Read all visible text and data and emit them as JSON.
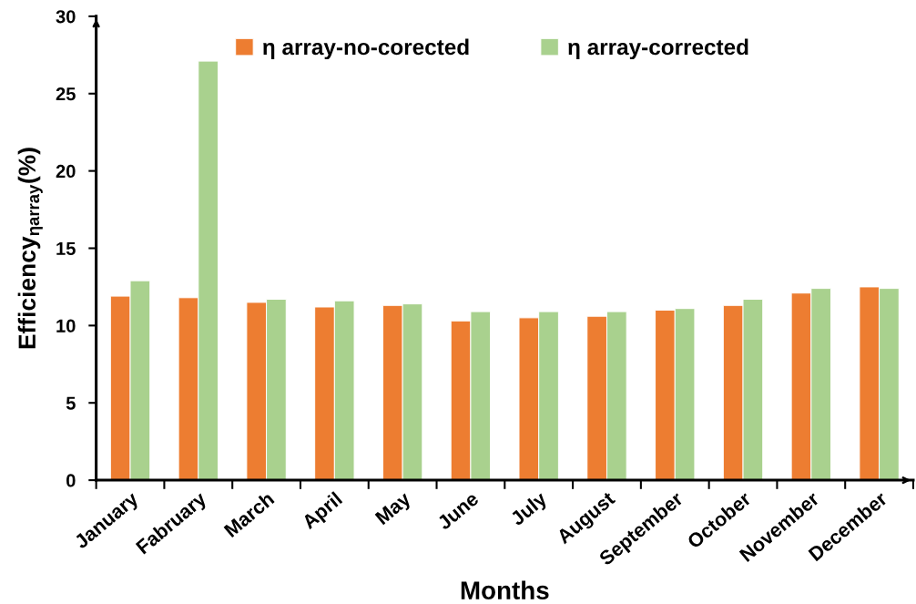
{
  "chart_data": {
    "type": "bar",
    "xlabel": "Months",
    "ylabel": "Efficiency$_{ηarray}$(%)",
    "categories": [
      "January",
      "Fabruary",
      "March",
      "April",
      "May",
      "June",
      "July",
      "August",
      "September",
      "October",
      "November",
      "December"
    ],
    "series": [
      {
        "name": "η array-no-corected",
        "color": "#ed7d31",
        "values": [
          11.9,
          11.8,
          11.5,
          11.2,
          11.3,
          10.3,
          10.5,
          10.6,
          11.0,
          11.3,
          12.1,
          12.5
        ]
      },
      {
        "name": "η array-corrected",
        "color": "#a9d18e",
        "values": [
          12.9,
          27.1,
          11.7,
          11.6,
          11.4,
          10.9,
          10.9,
          10.9,
          11.1,
          11.7,
          12.4,
          12.4
        ]
      }
    ],
    "ylim": [
      0,
      30
    ],
    "yticks": [
      0,
      5,
      10,
      15,
      20,
      25,
      30
    ],
    "grid": false,
    "legend": "top"
  }
}
